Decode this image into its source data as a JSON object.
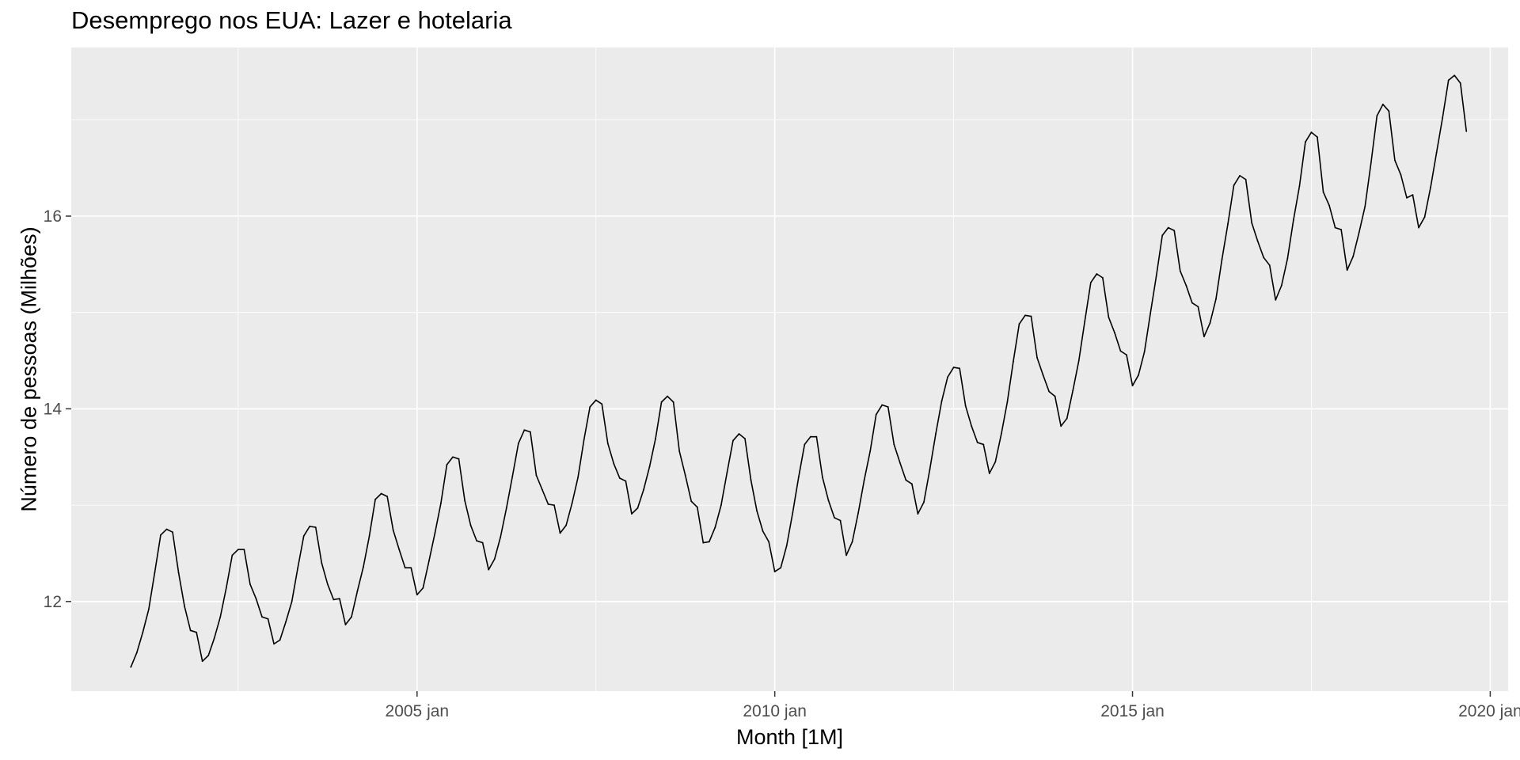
{
  "chart_data": {
    "type": "line",
    "title": "Desemprego nos EUA: Lazer e hotelaria",
    "xlabel": "Month [1M]",
    "ylabel": "Número de pessoas (Milhões)",
    "x_ticks": [
      "2005 jan",
      "2010 jan",
      "2015 jan",
      "2020 jan"
    ],
    "y_ticks": [
      "12",
      "14",
      "16"
    ],
    "xlim": [
      "2000-03",
      "2020-04"
    ],
    "ylim": [
      11.07,
      17.75
    ],
    "grid": true,
    "series": [
      {
        "color": "#000000",
        "x": [
          "2001-01",
          "2001-02",
          "2001-03",
          "2001-04",
          "2001-05",
          "2001-06",
          "2001-07",
          "2001-08",
          "2001-09",
          "2001-10",
          "2001-11",
          "2001-12",
          "2002-01",
          "2002-02",
          "2002-03",
          "2002-04",
          "2002-05",
          "2002-06",
          "2002-07",
          "2002-08",
          "2002-09",
          "2002-10",
          "2002-11",
          "2002-12",
          "2003-01",
          "2003-02",
          "2003-03",
          "2003-04",
          "2003-05",
          "2003-06",
          "2003-07",
          "2003-08",
          "2003-09",
          "2003-10",
          "2003-11",
          "2003-12",
          "2004-01",
          "2004-02",
          "2004-03",
          "2004-04",
          "2004-05",
          "2004-06",
          "2004-07",
          "2004-08",
          "2004-09",
          "2004-10",
          "2004-11",
          "2004-12",
          "2005-01",
          "2005-02",
          "2005-03",
          "2005-04",
          "2005-05",
          "2005-06",
          "2005-07",
          "2005-08",
          "2005-09",
          "2005-10",
          "2005-11",
          "2005-12",
          "2006-01",
          "2006-02",
          "2006-03",
          "2006-04",
          "2006-05",
          "2006-06",
          "2006-07",
          "2006-08",
          "2006-09",
          "2006-10",
          "2006-11",
          "2006-12",
          "2007-01",
          "2007-02",
          "2007-03",
          "2007-04",
          "2007-05",
          "2007-06",
          "2007-07",
          "2007-08",
          "2007-09",
          "2007-10",
          "2007-11",
          "2007-12",
          "2008-01",
          "2008-02",
          "2008-03",
          "2008-04",
          "2008-05",
          "2008-06",
          "2008-07",
          "2008-08",
          "2008-09",
          "2008-10",
          "2008-11",
          "2008-12",
          "2009-01",
          "2009-02",
          "2009-03",
          "2009-04",
          "2009-05",
          "2009-06",
          "2009-07",
          "2009-08",
          "2009-09",
          "2009-10",
          "2009-11",
          "2009-12",
          "2010-01",
          "2010-02",
          "2010-03",
          "2010-04",
          "2010-05",
          "2010-06",
          "2010-07",
          "2010-08",
          "2010-09",
          "2010-10",
          "2010-11",
          "2010-12",
          "2011-01",
          "2011-02",
          "2011-03",
          "2011-04",
          "2011-05",
          "2011-06",
          "2011-07",
          "2011-08",
          "2011-09",
          "2011-10",
          "2011-11",
          "2011-12",
          "2012-01",
          "2012-02",
          "2012-03",
          "2012-04",
          "2012-05",
          "2012-06",
          "2012-07",
          "2012-08",
          "2012-09",
          "2012-10",
          "2012-11",
          "2012-12",
          "2013-01",
          "2013-02",
          "2013-03",
          "2013-04",
          "2013-05",
          "2013-06",
          "2013-07",
          "2013-08",
          "2013-09",
          "2013-10",
          "2013-11",
          "2013-12",
          "2014-01",
          "2014-02",
          "2014-03",
          "2014-04",
          "2014-05",
          "2014-06",
          "2014-07",
          "2014-08",
          "2014-09",
          "2014-10",
          "2014-11",
          "2014-12",
          "2015-01",
          "2015-02",
          "2015-03",
          "2015-04",
          "2015-05",
          "2015-06",
          "2015-07",
          "2015-08",
          "2015-09",
          "2015-10",
          "2015-11",
          "2015-12",
          "2016-01",
          "2016-02",
          "2016-03",
          "2016-04",
          "2016-05",
          "2016-06",
          "2016-07",
          "2016-08",
          "2016-09",
          "2016-10",
          "2016-11",
          "2016-12",
          "2017-01",
          "2017-02",
          "2017-03",
          "2017-04",
          "2017-05",
          "2017-06",
          "2017-07",
          "2017-08",
          "2017-09",
          "2017-10",
          "2017-11",
          "2017-12",
          "2018-01",
          "2018-02",
          "2018-03",
          "2018-04",
          "2018-05",
          "2018-06",
          "2018-07",
          "2018-08",
          "2018-09",
          "2018-10",
          "2018-11",
          "2018-12",
          "2019-01",
          "2019-02",
          "2019-03",
          "2019-04",
          "2019-05",
          "2019-06",
          "2019-07",
          "2019-08",
          "2019-09"
        ],
        "values": [
          11.32,
          11.47,
          11.68,
          11.92,
          12.3,
          12.69,
          12.75,
          12.72,
          12.3,
          11.95,
          11.7,
          11.68,
          11.38,
          11.44,
          11.62,
          11.84,
          12.14,
          12.48,
          12.54,
          12.54,
          12.18,
          12.03,
          11.84,
          11.82,
          11.56,
          11.6,
          11.79,
          12.0,
          12.35,
          12.68,
          12.78,
          12.77,
          12.4,
          12.18,
          12.02,
          12.03,
          11.76,
          11.84,
          12.11,
          12.36,
          12.68,
          13.06,
          13.12,
          13.09,
          12.74,
          12.54,
          12.35,
          12.35,
          12.07,
          12.14,
          12.42,
          12.71,
          13.02,
          13.42,
          13.5,
          13.48,
          13.05,
          12.79,
          12.63,
          12.61,
          12.33,
          12.44,
          12.67,
          12.97,
          13.3,
          13.64,
          13.78,
          13.76,
          13.31,
          13.16,
          13.01,
          13.0,
          12.71,
          12.79,
          13.02,
          13.29,
          13.68,
          14.02,
          14.09,
          14.05,
          13.64,
          13.43,
          13.28,
          13.25,
          12.91,
          12.97,
          13.16,
          13.4,
          13.69,
          14.07,
          14.13,
          14.07,
          13.56,
          13.31,
          13.04,
          12.98,
          12.61,
          12.62,
          12.77,
          13.0,
          13.34,
          13.67,
          13.74,
          13.69,
          13.26,
          12.94,
          12.73,
          12.62,
          12.31,
          12.35,
          12.58,
          12.92,
          13.29,
          13.63,
          13.71,
          13.71,
          13.29,
          13.05,
          12.87,
          12.84,
          12.48,
          12.62,
          12.92,
          13.26,
          13.56,
          13.94,
          14.04,
          14.02,
          13.63,
          13.44,
          13.26,
          13.22,
          12.91,
          13.03,
          13.37,
          13.74,
          14.08,
          14.33,
          14.43,
          14.42,
          14.03,
          13.82,
          13.65,
          13.63,
          13.33,
          13.45,
          13.74,
          14.07,
          14.49,
          14.88,
          14.97,
          14.96,
          14.53,
          14.35,
          14.18,
          14.13,
          13.82,
          13.9,
          14.19,
          14.5,
          14.91,
          15.31,
          15.4,
          15.36,
          14.95,
          14.79,
          14.6,
          14.56,
          14.24,
          14.35,
          14.59,
          14.99,
          15.38,
          15.8,
          15.88,
          15.85,
          15.43,
          15.28,
          15.1,
          15.06,
          14.75,
          14.89,
          15.14,
          15.55,
          15.92,
          16.32,
          16.42,
          16.38,
          15.93,
          15.74,
          15.57,
          15.49,
          15.13,
          15.28,
          15.56,
          15.96,
          16.31,
          16.77,
          16.87,
          16.82,
          16.25,
          16.11,
          15.88,
          15.86,
          15.44,
          15.58,
          15.83,
          16.1,
          16.55,
          17.04,
          17.16,
          17.09,
          16.58,
          16.43,
          16.19,
          16.22,
          15.88,
          15.99,
          16.3,
          16.66,
          17.02,
          17.41,
          17.46,
          17.38,
          16.88
        ]
      }
    ]
  }
}
